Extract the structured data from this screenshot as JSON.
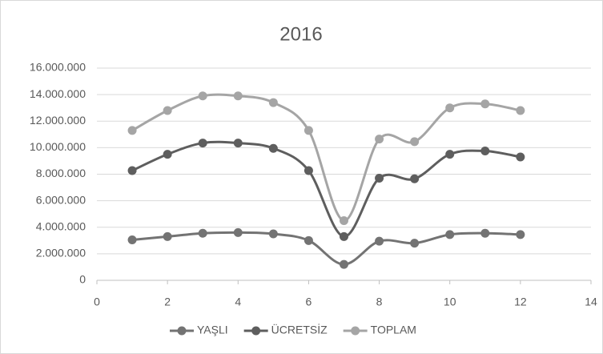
{
  "chart_data": {
    "type": "scatter-smooth",
    "title": "2016",
    "x": [
      1,
      2,
      3,
      4,
      5,
      6,
      7,
      8,
      9,
      10,
      11,
      12
    ],
    "series": [
      {
        "name": "YAŞLI",
        "color": "#737373",
        "values": [
          3050000,
          3300000,
          3550000,
          3600000,
          3500000,
          3000000,
          1200000,
          2950000,
          2800000,
          3450000,
          3550000,
          3450000
        ]
      },
      {
        "name": "ÜCRETSİZ",
        "color": "#5e5e5e",
        "values": [
          8270000,
          9500000,
          10350000,
          10350000,
          9950000,
          8270000,
          3300000,
          7700000,
          7650000,
          9500000,
          9750000,
          9300000
        ]
      },
      {
        "name": "TOPLAM",
        "color": "#a5a5a5",
        "values": [
          11300000,
          12800000,
          13900000,
          13900000,
          13400000,
          11300000,
          4500000,
          10650000,
          10450000,
          13000000,
          13300000,
          12800000
        ]
      }
    ],
    "xlim": [
      0,
      14
    ],
    "xticks": [
      0,
      2,
      4,
      6,
      8,
      10,
      12,
      14
    ],
    "ylim": [
      0,
      16000000
    ],
    "yticks": [
      0,
      {
        "value": 2000000,
        "label": "2.000.000"
      },
      {
        "value": 4000000,
        "label": "4.000.000"
      },
      {
        "value": 6000000,
        "label": "6.000.000"
      },
      {
        "value": 8000000,
        "label": "8.000.000"
      },
      {
        "value": 10000000,
        "label": "10.000.000"
      },
      {
        "value": 12000000,
        "label": "12.000.000"
      },
      {
        "value": 14000000,
        "label": "14.000.000"
      },
      {
        "value": 16000000,
        "label": "16.000.000"
      }
    ],
    "grid": true,
    "legend": "bottom"
  }
}
